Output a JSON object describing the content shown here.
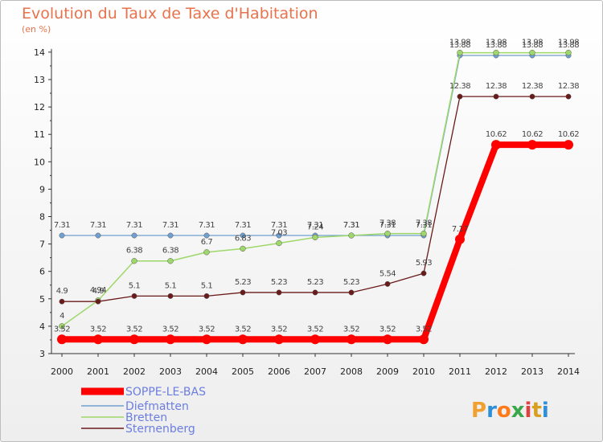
{
  "chart_data": {
    "type": "line",
    "title": "Evolution du Taux de Taxe d'Habitation",
    "subtitle": "(en %)",
    "x": [
      "2000",
      "2001",
      "2002",
      "2003",
      "2004",
      "2005",
      "2006",
      "2007",
      "2008",
      "2009",
      "2010",
      "2011",
      "2012",
      "2013",
      "2014"
    ],
    "ylim": [
      3,
      14
    ],
    "yticks": [
      "3",
      "4",
      "5",
      "6",
      "7",
      "8",
      "9",
      "10",
      "11",
      "12",
      "13",
      "14"
    ],
    "grid": false,
    "legend": "bottom-left",
    "series": [
      {
        "name": "SOPPE-LE-BAS",
        "color": "#ff0000",
        "values": [
          3.52,
          3.52,
          3.52,
          3.52,
          3.52,
          3.52,
          3.52,
          3.52,
          3.52,
          3.52,
          3.52,
          7.17,
          10.62,
          10.62,
          10.62
        ],
        "labels": [
          "3.52",
          "3.52",
          "3.52",
          "3.52",
          "3.52",
          "3.52",
          "3.52",
          "3.52",
          "3.52",
          "3.52",
          "3.52",
          "7.17",
          "10.62",
          "10.62",
          "10.62"
        ]
      },
      {
        "name": "Diefmatten",
        "color": "#6fa0d0",
        "values": [
          7.31,
          7.31,
          7.31,
          7.31,
          7.31,
          7.31,
          7.31,
          7.31,
          7.31,
          7.31,
          7.31,
          13.88,
          13.88,
          13.88,
          13.88
        ],
        "labels": [
          "7.31",
          "7.31",
          "7.31",
          "7.31",
          "7.31",
          "7.31",
          "7.31",
          "7.31",
          "7.31",
          "7.31",
          "7.31",
          "13.88",
          "13.88",
          "13.88",
          "13.88"
        ]
      },
      {
        "name": "Bretten",
        "color": "#9ed86a",
        "values": [
          4,
          4.94,
          6.38,
          6.38,
          6.7,
          6.83,
          7.03,
          7.24,
          7.31,
          7.38,
          7.38,
          13.98,
          13.98,
          13.98,
          13.98
        ],
        "labels": [
          "4",
          "4.94",
          "6.38",
          "6.38",
          "6.7",
          "6.83",
          "7.03",
          "7.24",
          "7.31",
          "7.38",
          "7.38",
          "13.98",
          "13.98",
          "13.98",
          "13.98"
        ]
      },
      {
        "name": "Sternenberg",
        "color": "#6b1a1a",
        "values": [
          4.9,
          4.9,
          5.1,
          5.1,
          5.1,
          5.23,
          5.23,
          5.23,
          5.23,
          5.54,
          5.93,
          12.38,
          12.38,
          12.38,
          12.38
        ],
        "labels": [
          "4.9",
          "4.9",
          "5.1",
          "5.1",
          "5.1",
          "5.23",
          "5.23",
          "5.23",
          "5.23",
          "5.54",
          "5.93",
          "12.38",
          "12.38",
          "12.38",
          "12.38"
        ]
      }
    ]
  },
  "logo": {
    "letters": [
      "P",
      "r",
      "o",
      "x",
      "i",
      "t",
      "i"
    ]
  }
}
